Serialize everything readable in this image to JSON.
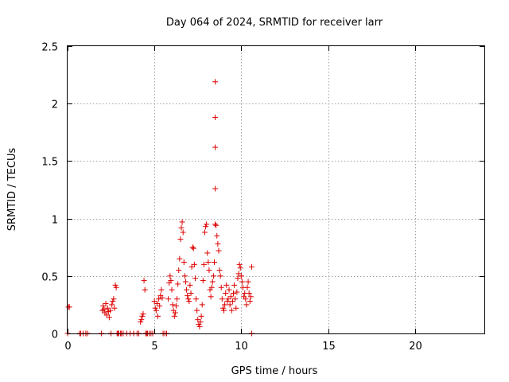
{
  "chart_data": {
    "type": "scatter",
    "title": "Day 064 of 2024, SRMTID for receiver larr",
    "xlabel": "GPS time / hours",
    "ylabel": "SRMTID / TECUs",
    "xlim": [
      0,
      24
    ],
    "ylim": [
      0,
      2.5
    ],
    "xticks": [
      0,
      5,
      10,
      15,
      20
    ],
    "xtick_labels": [
      "0",
      "5",
      "10",
      "15",
      "20"
    ],
    "yticks": [
      0,
      0.5,
      1,
      1.5,
      2,
      2.5
    ],
    "ytick_labels": [
      "0",
      "0.5",
      "1",
      "1.5",
      "2",
      "2.5"
    ],
    "grid": true,
    "marker": "+",
    "series": [
      {
        "name": "SRMTID",
        "color": "#dd0000",
        "x": [
          0.05,
          0.1,
          0.0,
          0.7,
          0.75,
          0.9,
          1.05,
          1.15,
          1.95,
          2.0,
          2.05,
          2.1,
          2.15,
          2.2,
          2.25,
          2.3,
          2.35,
          2.4,
          2.45,
          2.5,
          2.55,
          2.6,
          2.65,
          2.7,
          2.75,
          2.8,
          2.85,
          2.9,
          2.95,
          3.05,
          3.1,
          3.2,
          3.4,
          3.6,
          3.8,
          4.0,
          4.1,
          4.2,
          4.25,
          4.3,
          4.35,
          4.4,
          4.45,
          4.5,
          4.55,
          4.6,
          4.7,
          4.8,
          4.9,
          5.0,
          5.05,
          5.1,
          5.15,
          5.2,
          5.25,
          5.3,
          5.35,
          5.4,
          5.45,
          5.5,
          5.6,
          5.7,
          5.8,
          5.85,
          5.9,
          5.95,
          6.0,
          6.05,
          6.1,
          6.15,
          6.2,
          6.25,
          6.3,
          6.35,
          6.4,
          6.45,
          6.5,
          6.55,
          6.6,
          6.65,
          6.7,
          6.75,
          6.8,
          6.85,
          6.9,
          6.95,
          7.0,
          7.05,
          7.1,
          7.15,
          7.2,
          7.25,
          7.3,
          7.35,
          7.4,
          7.45,
          7.5,
          7.55,
          7.6,
          7.65,
          7.7,
          7.75,
          7.8,
          7.85,
          7.9,
          7.95,
          8.0,
          8.05,
          8.1,
          8.15,
          8.2,
          8.25,
          8.3,
          8.35,
          8.4,
          8.45,
          8.5,
          8.5,
          8.5,
          8.5,
          8.5,
          8.55,
          8.6,
          8.65,
          8.7,
          8.75,
          8.8,
          8.85,
          8.9,
          8.95,
          9.0,
          9.05,
          9.1,
          9.15,
          9.2,
          9.25,
          9.3,
          9.35,
          9.4,
          9.45,
          9.5,
          9.55,
          9.6,
          9.65,
          9.7,
          9.75,
          9.8,
          9.85,
          9.9,
          9.95,
          10.0,
          10.05,
          10.1,
          10.15,
          10.2,
          10.25,
          10.3,
          10.35,
          10.4,
          10.45,
          10.5,
          10.55,
          10.6,
          10.6
        ],
        "y": [
          0.23,
          0.23,
          0.0,
          0.0,
          0.0,
          0.0,
          0.0,
          0.0,
          0.0,
          0.2,
          0.24,
          0.21,
          0.18,
          0.26,
          0.16,
          0.22,
          0.19,
          0.14,
          0.2,
          0.0,
          0.25,
          0.28,
          0.3,
          0.22,
          0.42,
          0.4,
          0.0,
          0.0,
          0.0,
          0.0,
          0.0,
          0.0,
          0.0,
          0.0,
          0.0,
          0.0,
          0.0,
          0.1,
          0.12,
          0.15,
          0.17,
          0.46,
          0.38,
          0.0,
          0.0,
          0.0,
          0.0,
          0.0,
          0.0,
          0.28,
          0.22,
          0.2,
          0.26,
          0.15,
          0.3,
          0.24,
          0.33,
          0.38,
          0.31,
          0.0,
          0.0,
          0.0,
          0.3,
          0.44,
          0.5,
          0.46,
          0.38,
          0.25,
          0.2,
          0.15,
          0.18,
          0.24,
          0.3,
          0.43,
          0.55,
          0.65,
          0.82,
          0.92,
          0.97,
          0.88,
          0.62,
          0.5,
          0.45,
          0.38,
          0.33,
          0.3,
          0.28,
          0.42,
          0.35,
          0.58,
          0.75,
          0.74,
          0.6,
          0.48,
          0.3,
          0.2,
          0.12,
          0.08,
          0.06,
          0.1,
          0.15,
          0.25,
          0.46,
          0.6,
          0.88,
          0.93,
          0.95,
          0.7,
          0.62,
          0.55,
          0.38,
          0.32,
          0.4,
          0.45,
          0.5,
          0.62,
          2.19,
          1.88,
          1.62,
          1.26,
          0.95,
          0.94,
          0.85,
          0.78,
          0.72,
          0.55,
          0.5,
          0.4,
          0.3,
          0.22,
          0.2,
          0.25,
          0.35,
          0.42,
          0.28,
          0.3,
          0.38,
          0.25,
          0.32,
          0.2,
          0.28,
          0.35,
          0.42,
          0.3,
          0.22,
          0.36,
          0.48,
          0.52,
          0.6,
          0.57,
          0.5,
          0.45,
          0.4,
          0.32,
          0.35,
          0.3,
          0.25,
          0.4,
          0.45,
          0.35,
          0.28,
          0.32,
          0.58,
          0.0
        ]
      }
    ]
  }
}
